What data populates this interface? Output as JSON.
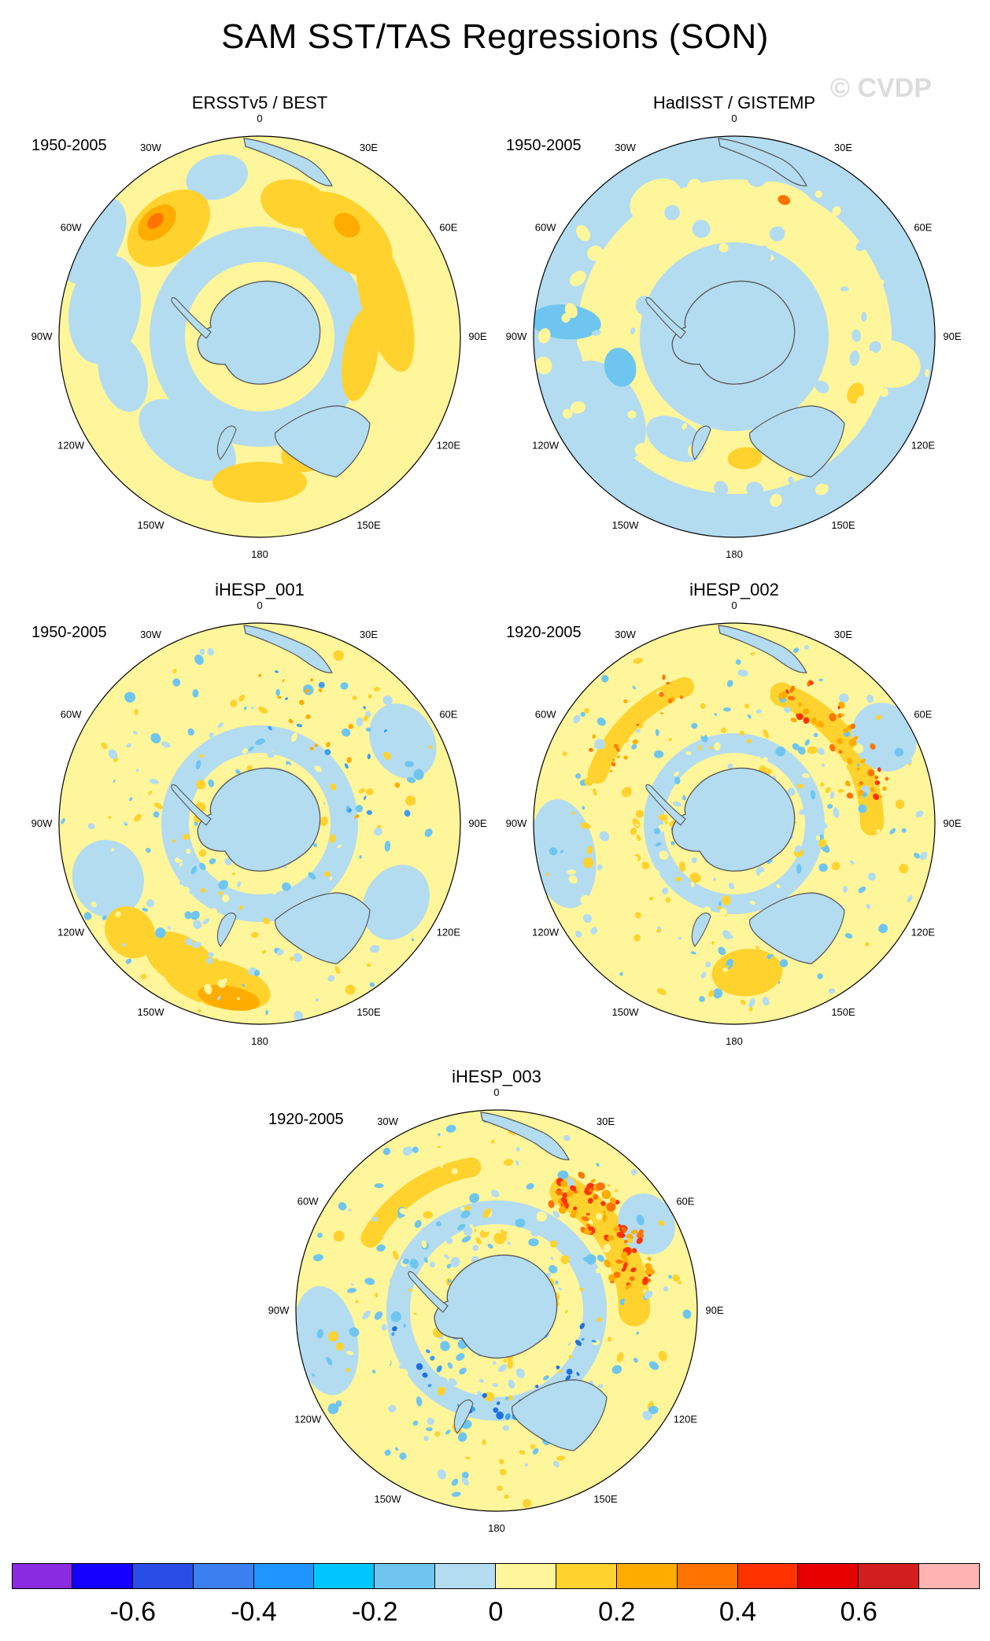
{
  "title": "SAM SST/TAS Regressions (SON)",
  "watermark": "© CVDP",
  "longitude_labels": [
    "0",
    "30E",
    "60E",
    "90E",
    "120E",
    "150E",
    "180",
    "150W",
    "120W",
    "90W",
    "60W",
    "30W"
  ],
  "panels": [
    {
      "id": "p1",
      "title": "ERSSTv5 / BEST",
      "period": "1950-2005",
      "style": "smooth-warm"
    },
    {
      "id": "p2",
      "title": "HadISST / GISTEMP",
      "period": "1950-2005",
      "style": "smooth-cool"
    },
    {
      "id": "p3",
      "title": "iHESP_001",
      "period": "1950-2005",
      "style": "noisy-pacific-warm"
    },
    {
      "id": "p4",
      "title": "iHESP_002",
      "period": "1920-2005",
      "style": "noisy-ring"
    },
    {
      "id": "p5",
      "title": "iHESP_003",
      "period": "1920-2005",
      "style": "noisy-ring-strong"
    }
  ],
  "colorbar": {
    "colors": [
      "#8a2be2",
      "#1400ff",
      "#2a4de8",
      "#3b7ff0",
      "#1f96ff",
      "#00c6ff",
      "#6ec6f0",
      "#b3dcf1",
      "#fff59a",
      "#ffd22e",
      "#ffac00",
      "#ff7400",
      "#ff3200",
      "#e60000",
      "#d21e1e",
      "#ffb3b3"
    ],
    "tick_labels": [
      "-0.6",
      "-0.4",
      "-0.2",
      "0",
      "0.2",
      "0.4",
      "0.6"
    ]
  },
  "palette": {
    "ocean_cool": "#b3dcf1",
    "ocean_warm": "#fff59a",
    "warm_1": "#ffd22e",
    "warm_2": "#ffac00",
    "warm_3": "#ff7400",
    "warm_4": "#ff3200",
    "cool_2": "#6ec6f0",
    "cool_3": "#3b9ff0",
    "cool_4": "#1f70e0",
    "land": "#b3dcf1",
    "coast": "#555555"
  }
}
